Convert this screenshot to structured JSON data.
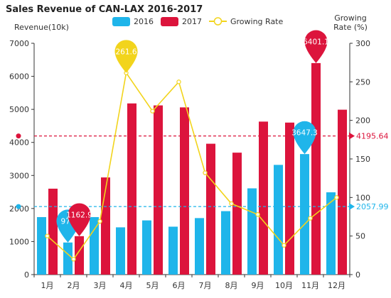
{
  "chart_data": {
    "type": "bar",
    "title": "Sales Revenue of CAN-LAX 2016-2017",
    "ylabel": "Revenue(10k)",
    "y2label_lines": [
      "Growing",
      "Rate (%)"
    ],
    "categories": [
      "1月",
      "2月",
      "3月",
      "4月",
      "5月",
      "6月",
      "7月",
      "8月",
      "9月",
      "10月",
      "11月",
      "12月"
    ],
    "ylim": [
      0,
      7000
    ],
    "yticks": [
      0,
      1000,
      2000,
      3000,
      4000,
      5000,
      6000,
      7000
    ],
    "y2lim": [
      0,
      300
    ],
    "y2ticks": [
      0,
      50,
      100,
      150,
      200,
      250,
      300
    ],
    "series": [
      {
        "name": "2016",
        "type": "bar",
        "axis": "left",
        "color": "#1fb5ea",
        "values": [
          1740,
          971,
          1740,
          1430,
          1640,
          1450,
          1710,
          1920,
          2610,
          3320,
          3647.3,
          2490
        ]
      },
      {
        "name": "2017",
        "type": "bar",
        "axis": "left",
        "color": "#dc143c",
        "values": [
          2600,
          1162.9,
          2940,
          5180,
          5120,
          5060,
          3960,
          3690,
          4630,
          4600,
          6401.1,
          4990
        ]
      },
      {
        "name": "Growing Rate",
        "type": "line",
        "axis": "right",
        "color": "#f2d41c",
        "values": [
          50,
          20,
          69,
          261.6,
          212,
          250,
          132,
          92,
          78,
          38,
          73,
          100
        ]
      }
    ],
    "annotations": {
      "max_pins": [
        {
          "series": 1,
          "index": 10,
          "label": "6401.1"
        },
        {
          "series": 0,
          "index": 10,
          "label": "3647.3"
        },
        {
          "series": 2,
          "index": 3,
          "label": "261.6"
        }
      ],
      "min_pins": [
        {
          "series": 0,
          "index": 1,
          "label": "971"
        },
        {
          "series": 1,
          "index": 1,
          "label": "1162.9"
        }
      ],
      "mark_lines": [
        {
          "series": 1,
          "value": 4195.64,
          "label": "4195.64",
          "color": "#dc143c"
        },
        {
          "series": 0,
          "value": 2057.99,
          "label": "2057.99",
          "color": "#1fb5ea"
        }
      ]
    },
    "legend_position": "top"
  }
}
